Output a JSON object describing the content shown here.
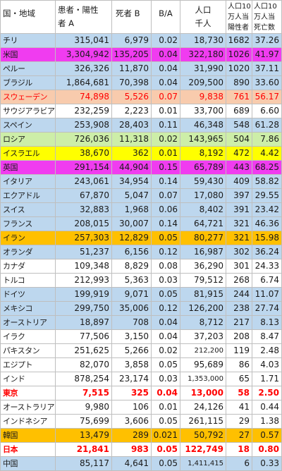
{
  "table": {
    "columns": [
      {
        "lines": [
          "国・地域"
        ]
      },
      {
        "lines": [
          "患者・陽性",
          "者 A"
        ]
      },
      {
        "lines": [
          "死者 B"
        ]
      },
      {
        "lines": [
          "B/A"
        ]
      },
      {
        "lines": [
          "人口",
          "千人"
        ]
      },
      {
        "lines": [
          "人口10",
          "万人当",
          "陽性者"
        ]
      },
      {
        "lines": [
          "人口10",
          "万人当",
          "死亡数"
        ]
      }
    ],
    "rows": [
      {
        "bg": "#bdd7ee",
        "cells": [
          "チリ",
          "315,041",
          "6,979",
          "0.02",
          "18,730",
          "1682",
          "37.26"
        ]
      },
      {
        "bg": "#f03cf0",
        "cells": [
          "米国",
          "3,304,942",
          "135,205",
          "0.04",
          "322,180",
          "1026",
          "41.97"
        ]
      },
      {
        "bg": "#bdd7ee",
        "cells": [
          "ペルー",
          "326,326",
          "11,870",
          "0.04",
          "31,990",
          "1020",
          "37.11"
        ]
      },
      {
        "bg": "#bdd7ee",
        "cells": [
          "ブラジル",
          "1,864,681",
          "70,398",
          "0.04",
          "209,500",
          "890",
          "33.60"
        ]
      },
      {
        "bg": "#f8cbad",
        "fg": "#ff0000",
        "cells": [
          "スウェーデン",
          "74,898",
          "5,526",
          "0.07",
          "9,838",
          "761",
          "56.17"
        ]
      },
      {
        "bg": "#ffffff",
        "cells": [
          "サウジアラビア",
          "232,259",
          "2,223",
          "0.01",
          "33,700",
          "689",
          "6.60"
        ]
      },
      {
        "bg": "#bdd7ee",
        "cells": [
          "スペイン",
          "253,908",
          "28,403",
          "0.11",
          "46,348",
          "548",
          "61.28"
        ]
      },
      {
        "bg": "#cdeea8",
        "cells": [
          "ロシア",
          "726,036",
          "11,318",
          "0.02",
          "143,965",
          "504",
          "7.86"
        ]
      },
      {
        "bg": "#ffff00",
        "cells": [
          "イスラエル",
          "38,670",
          "362",
          "0.01",
          "8,192",
          "472",
          "4.42"
        ]
      },
      {
        "bg": "#f03cf0",
        "cells": [
          "英国",
          "291,154",
          "44,904",
          "0.15",
          "65,789",
          "443",
          "68.25"
        ]
      },
      {
        "bg": "#bdd7ee",
        "cells": [
          "イタリア",
          "243,061",
          "34,954",
          "0.14",
          "59,430",
          "409",
          "58.82"
        ]
      },
      {
        "bg": "#bdd7ee",
        "cells": [
          "エクアドル",
          "67,870",
          "5,047",
          "0.07",
          "17,080",
          "397",
          "29.55"
        ]
      },
      {
        "bg": "#bdd7ee",
        "cells": [
          "スイス",
          "32,883",
          "1,968",
          "0.06",
          "8,402",
          "391",
          "23.42"
        ]
      },
      {
        "bg": "#bdd7ee",
        "cells": [
          "フランス",
          "208,015",
          "30,007",
          "0.14",
          "64,721",
          "321",
          "46.36"
        ]
      },
      {
        "bg": "#ffc000",
        "cells": [
          "イラン",
          "257,303",
          "12,829",
          "0.05",
          "80,277",
          "321",
          "15.98"
        ]
      },
      {
        "bg": "#bdd7ee",
        "cells": [
          "オランダ",
          "51,237",
          "6,156",
          "0.12",
          "16,987",
          "302",
          "36.24"
        ]
      },
      {
        "bg": "#ffffff",
        "cells": [
          "カナダ",
          "109,348",
          "8,829",
          "0.08",
          "36,290",
          "301",
          "24.33"
        ]
      },
      {
        "bg": "#ffffff",
        "cells": [
          "トルコ",
          "212,993",
          "5,363",
          "0.03",
          "79,512",
          "268",
          "6.74"
        ]
      },
      {
        "bg": "#bdd7ee",
        "cells": [
          "ドイツ",
          "199,919",
          "9,071",
          "0.05",
          "81,915",
          "244",
          "11.07"
        ]
      },
      {
        "bg": "#bdd7ee",
        "cells": [
          "メキシコ",
          "299,750",
          "35,006",
          "0.12",
          "126,200",
          "238",
          "27.74"
        ]
      },
      {
        "bg": "#bdd7ee",
        "cells": [
          "オーストリア",
          "18,897",
          "708",
          "0.04",
          "8,712",
          "217",
          "8.13"
        ]
      },
      {
        "bg": "#ffffff",
        "cells": [
          "イラク",
          "77,506",
          "3,150",
          "0.04",
          "37,203",
          "208",
          "8.47"
        ]
      },
      {
        "bg": "#ffffff",
        "cells": [
          "パキスタン",
          "251,625",
          "5,266",
          "0.02",
          "212,200",
          "119",
          "2.48"
        ]
      },
      {
        "bg": "#ffffff",
        "cells": [
          "エジプト",
          "82,070",
          "3,858",
          "0.05",
          "95,689",
          "86",
          "4.03"
        ]
      },
      {
        "bg": "#ffffff",
        "cells": [
          "インド",
          "878,254",
          "23,174",
          "0.03",
          "1,353,000",
          "65",
          "1.71"
        ]
      },
      {
        "bg": "#ffffff",
        "fg": "#ff0000",
        "cells": [
          "東京",
          "7,515",
          "325",
          "0.04",
          "13,000",
          "58",
          "2.50"
        ]
      },
      {
        "bg": "#ffffff",
        "cells": [
          "オーストラリア",
          "9,980",
          "106",
          "0.01",
          "24,126",
          "41",
          "0.44"
        ]
      },
      {
        "bg": "#ffffff",
        "cells": [
          "インドネシア",
          "75,699",
          "3,606",
          "0.05",
          "261,115",
          "29",
          "1.38"
        ]
      },
      {
        "bg": "#ffc000",
        "cells": [
          "韓国",
          "13,479",
          "289",
          "0.021",
          "50,792",
          "27",
          "0.57"
        ]
      },
      {
        "bg": "#ffffff",
        "fg": "#ff0000",
        "cells": [
          "日本",
          "21,841",
          "983",
          "0.05",
          "122,749",
          "18",
          "0.80"
        ]
      },
      {
        "bg": "#bdd7ee",
        "cells": [
          "中国",
          "85,117",
          "4,641",
          "0.05",
          "1,411,415",
          "6",
          "0.33"
        ]
      }
    ]
  }
}
